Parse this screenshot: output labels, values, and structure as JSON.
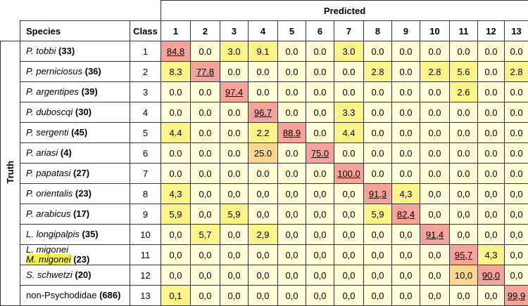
{
  "chart_data": {
    "type": "table",
    "title": "Predicted",
    "ylabel": "Truth",
    "species_header": "Species",
    "class_header": "Class",
    "columns": [
      "1",
      "2",
      "3",
      "4",
      "5",
      "6",
      "7",
      "8",
      "9",
      "10",
      "11",
      "12",
      "13"
    ],
    "rows": [
      {
        "species": "P. tobbi",
        "count": "(33)",
        "class": "1",
        "values": [
          "84.8",
          "0.0",
          "3.0",
          "9.1",
          "0.0",
          "0.0",
          "3.0",
          "0.0",
          "0.0",
          "0.0",
          "0.0",
          "0.0",
          "0.0"
        ]
      },
      {
        "species": "P. perniciosus",
        "count": "(36)",
        "class": "2",
        "values": [
          "8.3",
          "77.8",
          "0.0",
          "0.0",
          "0.0",
          "0.0",
          "0.0",
          "2.8",
          "0.0",
          "2.8",
          "5.6",
          "0.0",
          "2.8"
        ]
      },
      {
        "species": "P. argentipes",
        "count": "(39)",
        "class": "3",
        "values": [
          "0.0",
          "0.0",
          "97.4",
          "0.0",
          "0.0",
          "0.0",
          "0.0",
          "0.0",
          "0.0",
          "0.0",
          "2.6",
          "0.0",
          "0.0"
        ]
      },
      {
        "species": "P. duboscqi",
        "count": "(30)",
        "class": "4",
        "values": [
          "0.0",
          "0.0",
          "0.0",
          "96.7",
          "0.0",
          "0.0",
          "3.3",
          "0.0",
          "0.0",
          "0.0",
          "0.0",
          "0.0",
          "0.0"
        ]
      },
      {
        "species": "P. sergenti",
        "count": "(45)",
        "class": "5",
        "values": [
          "4.4",
          "0.0",
          "0.0",
          "2.2",
          "88.9",
          "0.0",
          "4.4",
          "0.0",
          "0.0",
          "0.0",
          "0.0",
          "0.0",
          "0.0"
        ]
      },
      {
        "species": "P. ariasi",
        "count": "(4)",
        "class": "6",
        "values": [
          "0.0",
          "0.0",
          "0.0",
          "25.0",
          "0.0",
          "75.0",
          "0.0",
          "0.0",
          "0.0",
          "0.0",
          "0.0",
          "0.0",
          "0.0"
        ]
      },
      {
        "species": "P. papatasi",
        "count": "(27)",
        "class": "7",
        "values": [
          "0.0",
          "0.0",
          "0.0",
          "0.0",
          "0.0",
          "0.0",
          "100.0",
          "0.0",
          "0.0",
          "0.0",
          "0.0",
          "0.0",
          "0.0"
        ]
      },
      {
        "species": "P. orientalis",
        "count": "(23)",
        "class": "8",
        "values": [
          "4,3",
          "0,0",
          "0,0",
          "0,0",
          "0,0",
          "0,0",
          "0,0",
          "91,3",
          "4,3",
          "0,0",
          "0,0",
          "0,0",
          "0,0"
        ]
      },
      {
        "species": "P. arabicus",
        "count": "(17)",
        "class": "9",
        "values": [
          "5,9",
          "0,0",
          "5,9",
          "0,0",
          "0,0",
          "0,0",
          "0,0",
          "5,9",
          "82,4",
          "0,0",
          "0,0",
          "0,0",
          "0,0"
        ]
      },
      {
        "species": "L. longipalpis",
        "count": "(35)",
        "class": "10",
        "values": [
          "0,0",
          "5,7",
          "0,0",
          "2,9",
          "0,0",
          "0,0",
          "0,0",
          "0,0",
          "0,0",
          "91,4",
          "0,0",
          "0,0",
          "0,0"
        ]
      },
      {
        "species": "L. migonei",
        "species2": "M. migonei",
        "count": "(23)",
        "class": "11",
        "values": [
          "0,0",
          "0,0",
          "0,0",
          "0,0",
          "0,0",
          "0,0",
          "0,0",
          "0,0",
          "0,0",
          "0,0",
          "95,7",
          "4,3",
          "0,0"
        ]
      },
      {
        "species": "S. schwetzi",
        "count": "(20)",
        "class": "12",
        "values": [
          "0,0",
          "0,0",
          "0,0",
          "0,0",
          "0,0",
          "0,0",
          "0,0",
          "0,0",
          "0,0",
          "0,0",
          "10,0",
          "90,0",
          "0,0"
        ]
      },
      {
        "species": "non-Psychodidae",
        "count": "(686)",
        "class": "13",
        "values": [
          "0,1",
          "0,0",
          "0,0",
          "0,0",
          "0,0",
          "0,0",
          "0,0",
          "0,0",
          "0,0",
          "0,0",
          "0,0",
          "0,0",
          "99,9"
        ]
      }
    ],
    "colors": {
      "zero": "#fefdd6",
      "low": "#fdf489",
      "mid": "#fbd790",
      "high": "#f6a39a"
    }
  }
}
